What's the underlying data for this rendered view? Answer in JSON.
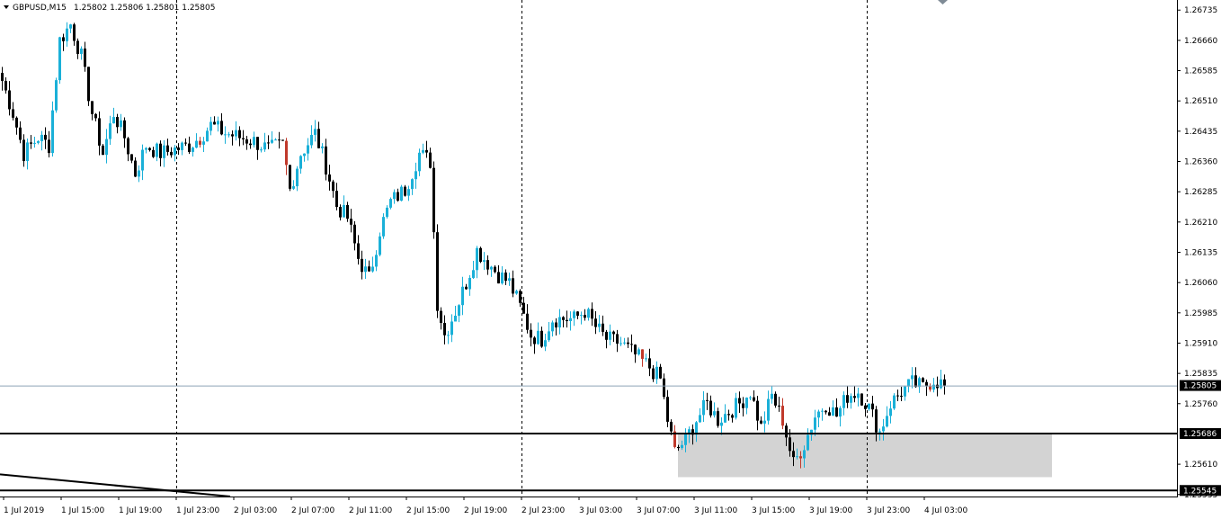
{
  "header": {
    "symbol": "GBPUSD,M15",
    "ohlc": "1.25802 1.25806 1.25801 1.25805"
  },
  "colors": {
    "background": "#ffffff",
    "bull": "#1ab0d8",
    "bear": "#000000",
    "bear_accent": "#c0392b",
    "grid_period": "#000000",
    "bid_line": "#8ea3b8",
    "rect_fill": "#d3d3d3",
    "price_box_bg": "#000000",
    "price_box_text": "#ffffff"
  },
  "chart_data": {
    "type": "candlestick",
    "symbol": "GBPUSD",
    "timeframe": "M15",
    "y_axis": {
      "ticks": [
        "1.26735",
        "1.26660",
        "1.26585",
        "1.26510",
        "1.26435",
        "1.26360",
        "1.26285",
        "1.26210",
        "1.26135",
        "1.26060",
        "1.25985",
        "1.25910",
        "1.25835",
        "1.25760",
        "1.25610",
        "1.25535"
      ],
      "range": [
        1.2553,
        1.2676
      ]
    },
    "x_axis": {
      "ticks": [
        "1 Jul 2019",
        "1 Jul 15:00",
        "1 Jul 19:00",
        "1 Jul 23:00",
        "2 Jul 03:00",
        "2 Jul 07:00",
        "2 Jul 11:00",
        "2 Jul 15:00",
        "2 Jul 19:00",
        "2 Jul 23:00",
        "3 Jul 03:00",
        "3 Jul 07:00",
        "3 Jul 11:00",
        "3 Jul 15:00",
        "3 Jul 19:00",
        "3 Jul 23:00",
        "4 Jul 03:00"
      ]
    },
    "period_separators": [
      "1 Jul 23:00",
      "2 Jul 23:00",
      "3 Jul 23:00"
    ],
    "current_price": "1.25805",
    "horizontal_lines": [
      {
        "label": "1.25686",
        "price": 1.25686
      },
      {
        "label": "1.25545",
        "price": 1.25545
      }
    ],
    "rectangle": {
      "price_top": 1.25686,
      "price_bottom": 1.25578,
      "from_bar": 188,
      "to_bar": 292
    },
    "trendline": {
      "from_price": 1.25585,
      "to_price": 1.2553
    },
    "path_knots": [
      [
        0,
        1.2656
      ],
      [
        3,
        1.2648
      ],
      [
        6,
        1.2638
      ],
      [
        10,
        1.2642
      ],
      [
        13,
        1.264
      ],
      [
        16,
        1.2666
      ],
      [
        19,
        1.267
      ],
      [
        22,
        1.2662
      ],
      [
        25,
        1.2648
      ],
      [
        28,
        1.2638
      ],
      [
        31,
        1.2648
      ],
      [
        34,
        1.2642
      ],
      [
        37,
        1.2633
      ],
      [
        40,
        1.264
      ],
      [
        44,
        1.2638
      ],
      [
        48,
        1.2639
      ],
      [
        52,
        1.264
      ],
      [
        55,
        1.2642
      ],
      [
        58,
        1.2645
      ],
      [
        62,
        1.2643
      ],
      [
        66,
        1.2642
      ],
      [
        70,
        1.2641
      ],
      [
        74,
        1.2639
      ],
      [
        78,
        1.264
      ],
      [
        80,
        1.2629
      ],
      [
        83,
        1.2638
      ],
      [
        87,
        1.2643
      ],
      [
        90,
        1.2635
      ],
      [
        93,
        1.2625
      ],
      [
        96,
        1.2622
      ],
      [
        99,
        1.2612
      ],
      [
        102,
        1.2607
      ],
      [
        105,
        1.2619
      ],
      [
        108,
        1.2626
      ],
      [
        112,
        1.2629
      ],
      [
        116,
        1.2638
      ],
      [
        119,
        1.2636
      ],
      [
        121,
        1.2601
      ],
      [
        123,
        1.2593
      ],
      [
        126,
        1.2599
      ],
      [
        129,
        1.2606
      ],
      [
        132,
        1.2614
      ],
      [
        135,
        1.2611
      ],
      [
        138,
        1.2608
      ],
      [
        141,
        1.2606
      ],
      [
        144,
        1.26
      ],
      [
        147,
        1.2593
      ],
      [
        150,
        1.2592
      ],
      [
        153,
        1.2597
      ],
      [
        156,
        1.2597
      ],
      [
        159,
        1.2597
      ],
      [
        162,
        1.2599
      ],
      [
        165,
        1.2595
      ],
      [
        168,
        1.2592
      ],
      [
        172,
        1.2591
      ],
      [
        176,
        1.2588
      ],
      [
        180,
        1.2585
      ],
      [
        183,
        1.2582
      ],
      [
        185,
        1.2572
      ],
      [
        187,
        1.2564
      ],
      [
        190,
        1.2567
      ],
      [
        193,
        1.2572
      ],
      [
        196,
        1.2576
      ],
      [
        199,
        1.2572
      ],
      [
        202,
        1.2574
      ],
      [
        205,
        1.2576
      ],
      [
        208,
        1.2579
      ],
      [
        211,
        1.257
      ],
      [
        214,
        1.2578
      ],
      [
        217,
        1.2572
      ],
      [
        220,
        1.2561
      ],
      [
        223,
        1.2566
      ],
      [
        226,
        1.2573
      ],
      [
        229,
        1.2576
      ],
      [
        232,
        1.2573
      ],
      [
        235,
        1.2578
      ],
      [
        238,
        1.2579
      ],
      [
        241,
        1.2575
      ],
      [
        244,
        1.2569
      ],
      [
        247,
        1.2576
      ],
      [
        250,
        1.2579
      ],
      [
        253,
        1.2581
      ],
      [
        256,
        1.258
      ],
      [
        259,
        1.2582
      ],
      [
        262,
        1.25805
      ]
    ]
  }
}
